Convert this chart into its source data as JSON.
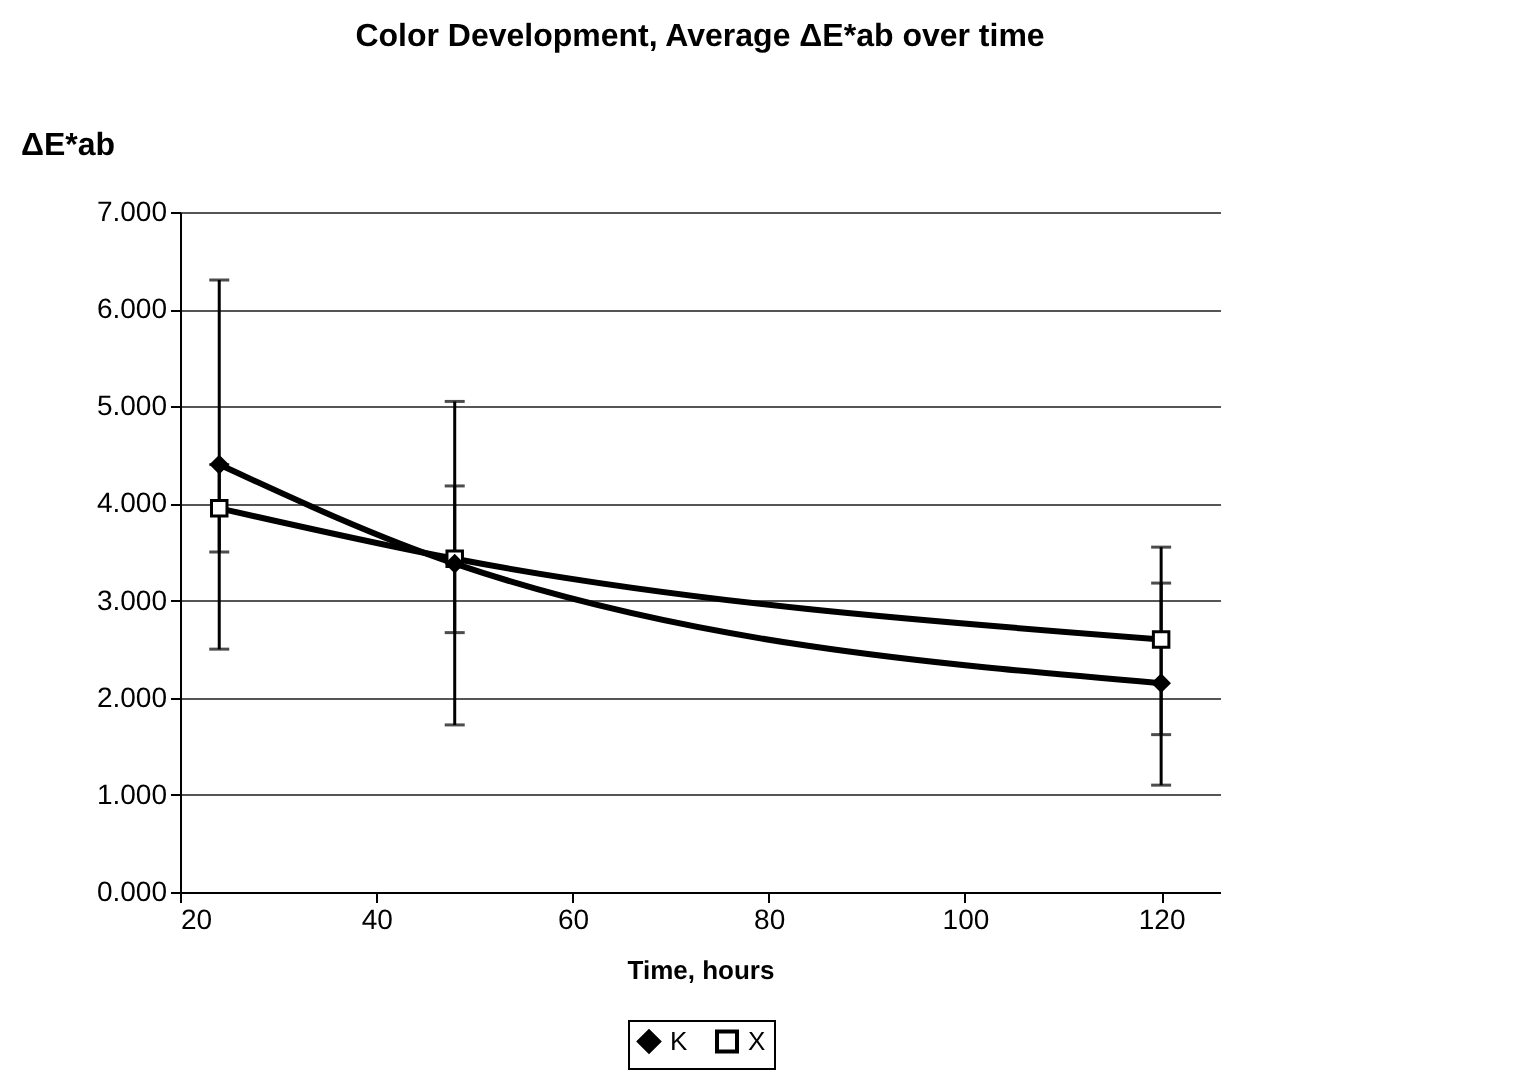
{
  "chart_data": {
    "type": "line",
    "title": "Color Development, Average ΔE*ab over time",
    "xlabel": "Time, hours",
    "ylabel": "ΔE*ab",
    "x": [
      24,
      48,
      120
    ],
    "series": [
      {
        "name": "K",
        "color": "#000000",
        "marker": "diamond",
        "values": [
          4.4,
          3.38,
          2.15
        ],
        "errors": [
          [
            2.5,
            6.3
          ],
          [
            1.72,
            5.05
          ],
          [
            1.1,
            3.18
          ]
        ]
      },
      {
        "name": "X",
        "color": "#000000",
        "marker": "square",
        "values": [
          3.95,
          3.43,
          2.6
        ],
        "errors": [
          [
            3.5,
            4.4
          ],
          [
            2.67,
            4.18
          ],
          [
            1.62,
            3.55
          ]
        ]
      }
    ],
    "xlim": [
      20,
      126
    ],
    "xticks": [
      20,
      40,
      60,
      80,
      100,
      120
    ],
    "ylim": [
      0,
      7
    ],
    "yticks": [
      {
        "value": 0,
        "label": "0.000"
      },
      {
        "value": 1,
        "label": "1.000"
      },
      {
        "value": 2,
        "label": "2.000"
      },
      {
        "value": 3,
        "label": "3.000"
      },
      {
        "value": 4,
        "label": "4.000"
      },
      {
        "value": 5,
        "label": "5.000"
      },
      {
        "value": 6,
        "label": "6.000"
      },
      {
        "value": 7,
        "label": "7.000"
      }
    ],
    "grid": "y",
    "legend": "bottom"
  }
}
